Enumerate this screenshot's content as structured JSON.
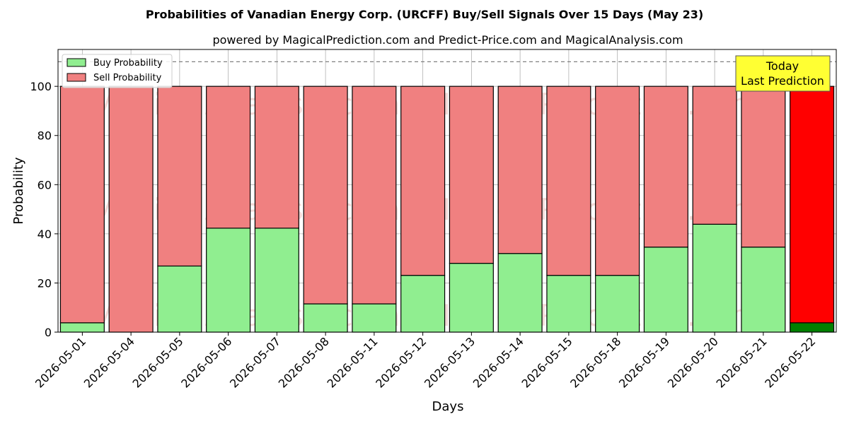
{
  "chart_data": {
    "type": "bar",
    "stacked": true,
    "title": "Probabilities of Vanadian Energy Corp. (URCFF) Buy/Sell Signals Over 15 Days (May 23)",
    "subtitle": "powered by MagicalPrediction.com and Predict-Price.com and MagicalAnalysis.com",
    "xlabel": "Days",
    "ylabel": "Probability",
    "ylim": [
      0,
      115
    ],
    "yticks": [
      0,
      20,
      40,
      60,
      80,
      100
    ],
    "grid": true,
    "legend_placement": "top-left",
    "categories": [
      "2026-05-01",
      "2026-05-04",
      "2026-05-05",
      "2026-05-06",
      "2026-05-07",
      "2026-05-08",
      "2026-05-11",
      "2026-05-12",
      "2026-05-13",
      "2026-05-14",
      "2026-05-15",
      "2026-05-18",
      "2026-05-19",
      "2026-05-20",
      "2026-05-21",
      "2026-05-22"
    ],
    "series": [
      {
        "name": "Buy Probability",
        "color": "#90EE90",
        "values": [
          3.8,
          0,
          26.9,
          42.3,
          42.3,
          11.5,
          11.5,
          23.1,
          28.0,
          32.0,
          23.1,
          23.1,
          34.6,
          43.9,
          34.6,
          3.8
        ]
      },
      {
        "name": "Sell Probability",
        "color": "#F08080",
        "values": [
          96.2,
          100,
          73.1,
          57.7,
          57.7,
          88.5,
          88.5,
          76.9,
          72.0,
          68.0,
          76.9,
          76.9,
          65.4,
          56.1,
          65.4,
          96.2
        ]
      }
    ],
    "highlight": {
      "index": 15,
      "buy_color": "#008000",
      "sell_color": "#FF0000"
    },
    "reference_line": {
      "y": 110,
      "style": "dashed",
      "color": "#808080"
    },
    "annotation": {
      "lines": [
        "Today",
        "Last Prediction"
      ],
      "background": "#FFFF33"
    },
    "watermarks": [
      "MagicalAnalysis.com",
      "MagicalPrediction.com"
    ]
  }
}
